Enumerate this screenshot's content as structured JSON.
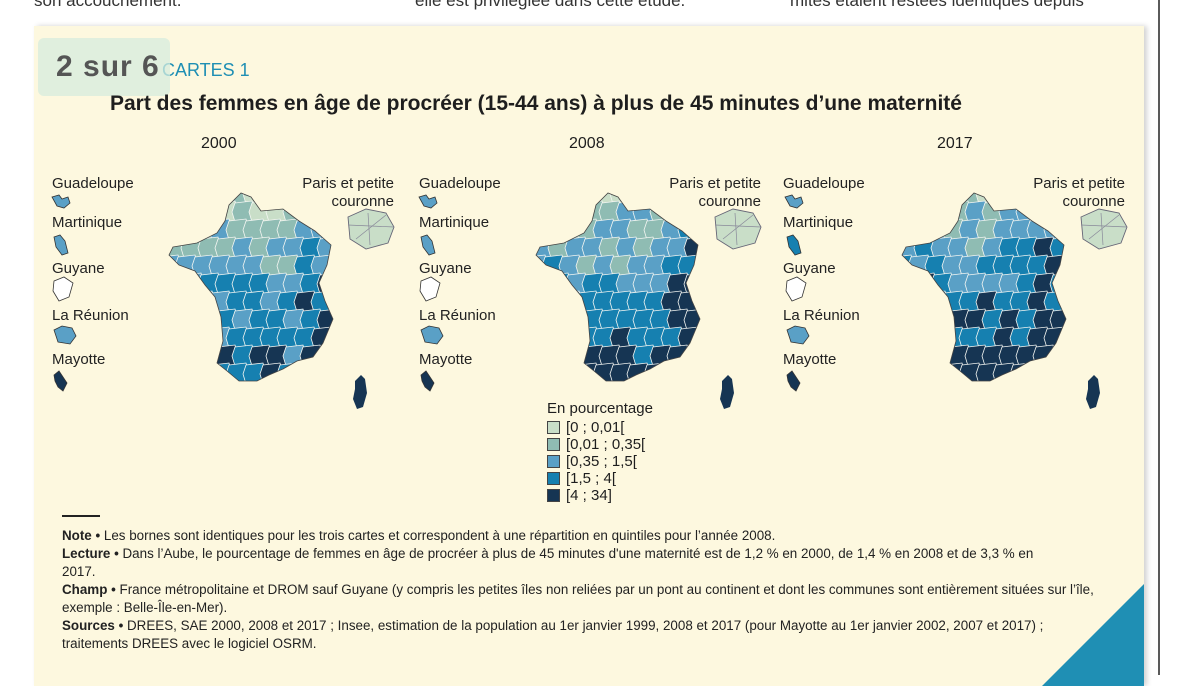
{
  "top_snippets": [
    "son accouchement.",
    "elle est privilégiée dans cette étude.",
    "mites étaient restées identiques depuis"
  ],
  "page_indicator": "2 sur 6",
  "figure_label": "CARTES 1",
  "title": "Part des femmes en âge de procréer (15-44 ans) à plus de 45 minutes d’une maternité",
  "years": [
    "2000",
    "2008",
    "2017"
  ],
  "territories": [
    "Guadeloupe",
    "Martinique",
    "Guyane",
    "La Réunion",
    "Mayotte"
  ],
  "paris_label": "Paris et petite couronne",
  "legend": {
    "title": "En pourcentage",
    "classes": [
      {
        "label": "[0 ; 0,01[",
        "color": "#c9dec8"
      },
      {
        "label": "[0,01 ; 0,35[",
        "color": "#8fbcb3"
      },
      {
        "label": "[0,35 ; 1,5[",
        "color": "#5aa0c6"
      },
      {
        "label": "[1,5 ; 4[",
        "color": "#1680b0"
      },
      {
        "label": "[4 ; 34]",
        "color": "#163553"
      }
    ]
  },
  "notes": {
    "note_label": "Note •",
    "note_text": "Les bornes sont identiques pour les trois cartes et correspondent à une répartition en quintiles pour l’année 2008.",
    "lecture_label": "Lecture •",
    "lecture_text": "Dans l’Aube, le pourcentage de femmes en âge de procréer à plus de 45 minutes d'une maternité est de 1,2 % en 2000, de 1,4 % en 2008 et de 3,3 % en 2017.",
    "champ_label": "Champ •",
    "champ_text": "France métropolitaine et DROM sauf Guyane (y compris les petites îles non reliées par un pont au continent et dont les communes sont entièrement situées sur l’île, exemple : Belle-Île-en-Mer).",
    "sources_label": "Sources •",
    "sources_text": "DREES, SAE 2000, 2008 et 2017 ; Insee, estimation de la population au 1er janvier 1999, 2008 et 2017 (pour Mayotte au 1er janvier 2002, 2007 et 2017) ; traitements DREES avec le logiciel OSRM."
  },
  "accent_color": "#1f8fb4",
  "panel_color": "#fdf8df"
}
